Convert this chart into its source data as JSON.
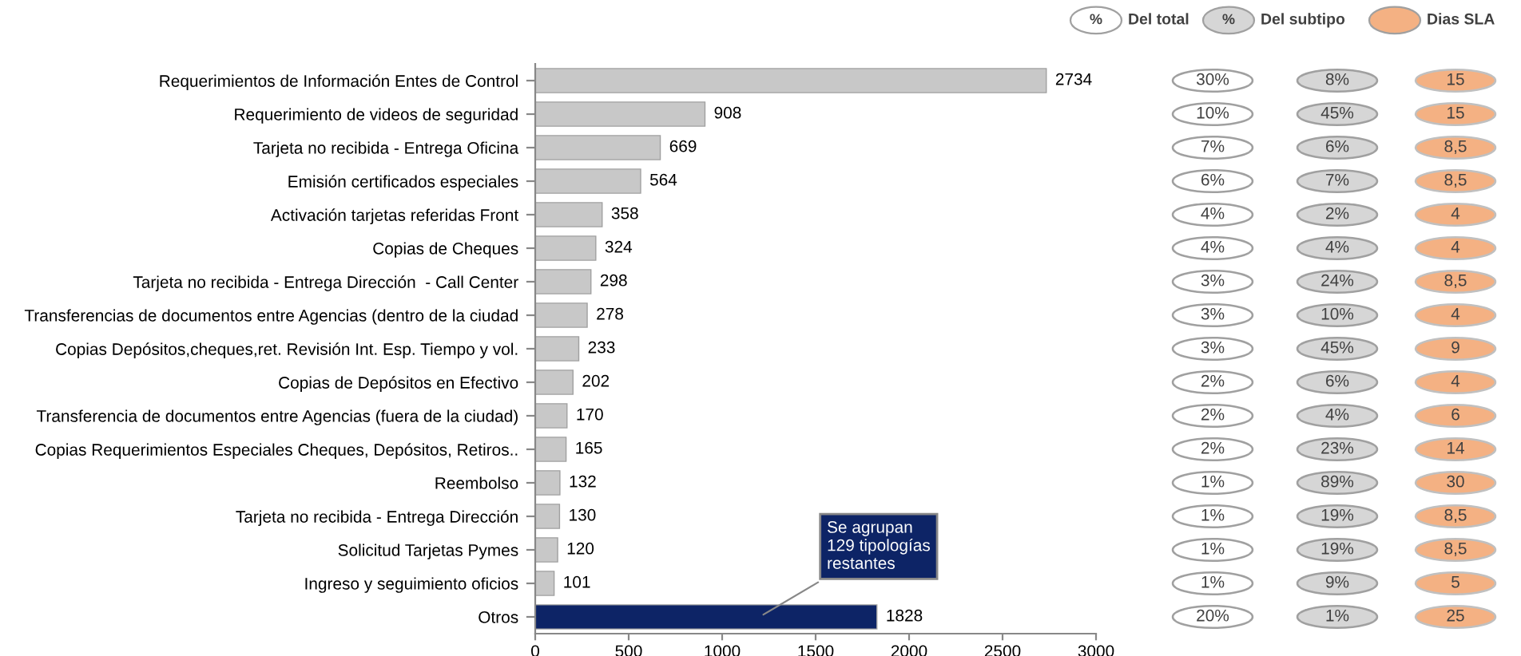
{
  "chart_data": {
    "type": "bar",
    "orientation": "horizontal",
    "categories": [
      "Requerimientos de Información Entes de Control",
      "Requerimiento de videos de seguridad",
      "Tarjeta no recibida - Entrega Oficina",
      "Emisión certificados especiales",
      "Activación tarjetas referidas Front",
      "Copias de Cheques",
      "Tarjeta no recibida - Entrega Dirección  - Call Center",
      "Transferencias de documentos entre Agencias (dentro de la ciudad",
      "Copias Depósitos,cheques,ret. Revisión Int. Esp. Tiempo y vol.",
      "Copias de Depósitos en Efectivo",
      "Transferencia de documentos entre Agencias (fuera de la ciudad)",
      "Copias Requerimientos Especiales Cheques, Depósitos, Retiros..",
      "Reembolso",
      "Tarjeta no recibida - Entrega Dirección",
      "Solicitud Tarjetas Pymes",
      "Ingreso y seguimiento oficios",
      "Otros"
    ],
    "values": [
      2734,
      908,
      669,
      564,
      358,
      324,
      298,
      278,
      233,
      202,
      170,
      165,
      132,
      130,
      120,
      101,
      1828
    ],
    "colors": [
      "#c8c8c8",
      "#c8c8c8",
      "#c8c8c8",
      "#c8c8c8",
      "#c8c8c8",
      "#c8c8c8",
      "#c8c8c8",
      "#c8c8c8",
      "#c8c8c8",
      "#c8c8c8",
      "#c8c8c8",
      "#c8c8c8",
      "#c8c8c8",
      "#c8c8c8",
      "#c8c8c8",
      "#c8c8c8",
      "#0d2466"
    ],
    "xlim": [
      0,
      3000
    ],
    "xticks": [
      0,
      500,
      1000,
      1500,
      2000,
      2500,
      3000
    ],
    "data_labels": true,
    "grid": false,
    "annotations": [
      "Se agrupan\n129 tipologías\nrestantes",
      "%",
      "Del total",
      "%",
      "Del subtipo",
      "Dias SLA",
      "30%",
      "10%",
      "7%",
      "6%",
      "4%",
      "4%",
      "3%",
      "3%",
      "3%",
      "2%",
      "2%",
      "2%",
      "1%",
      "1%",
      "1%",
      "1%",
      "20%",
      "8%",
      "45%",
      "6%",
      "7%",
      "2%",
      "4%",
      "24%",
      "10%",
      "45%",
      "6%",
      "4%",
      "23%",
      "89%",
      "19%",
      "19%",
      "9%",
      "1%",
      "15",
      "15",
      "8,5",
      "8,5",
      "4",
      "4",
      "8,5",
      "4",
      "9",
      "4",
      "6",
      "14",
      "30",
      "8,5",
      "8,5",
      "5",
      "25"
    ]
  }
}
